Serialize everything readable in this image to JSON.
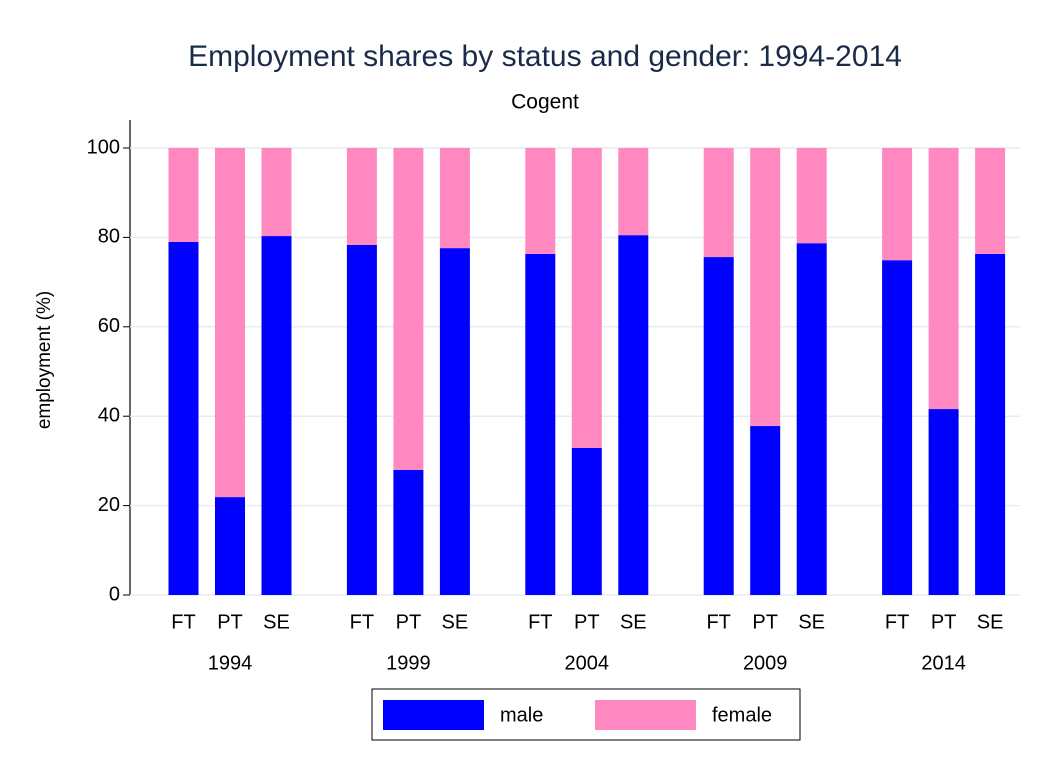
{
  "chart_data": {
    "type": "stacked_bar",
    "title": "Employment shares by status and gender: 1994-2014",
    "subtitle": "Cogent",
    "y_label": "employment (%)",
    "groups": [
      "1994",
      "1999",
      "2004",
      "2009",
      "2014"
    ],
    "categories": [
      "FT",
      "PT",
      "SE",
      "FT",
      "PT",
      "SE",
      "FT",
      "PT",
      "SE",
      "FT",
      "PT",
      "SE",
      "FT",
      "PT",
      "SE"
    ],
    "series": [
      {
        "name": "male",
        "color": "#0000ff",
        "values": [
          79.0,
          21.9,
          80.3,
          78.3,
          28.0,
          77.6,
          76.3,
          32.9,
          80.5,
          75.6,
          37.8,
          78.7,
          74.9,
          41.6,
          76.3
        ]
      },
      {
        "name": "female",
        "color": "#ff88c0",
        "values": [
          21.0,
          78.1,
          19.7,
          21.7,
          72.0,
          22.4,
          23.7,
          67.1,
          19.5,
          24.4,
          62.2,
          21.3,
          25.1,
          58.4,
          23.7
        ]
      }
    ],
    "ylim": [
      0,
      100
    ],
    "yticks": [
      0,
      20,
      40,
      60,
      80,
      100
    ],
    "grid": true
  }
}
